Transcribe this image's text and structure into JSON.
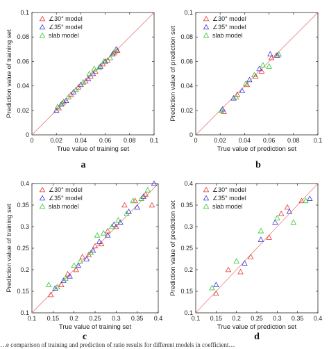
{
  "chart_data": [
    {
      "type": "scatter",
      "panel": "a",
      "xlabel": "True value of training set",
      "ylabel": "Prediction value of training set",
      "xlim": [
        0,
        0.1
      ],
      "ylim": [
        0,
        0.1
      ],
      "xticks": [
        "0",
        "0.02",
        "0.04",
        "0.06",
        "0.08",
        "0.1"
      ],
      "yticks": [
        "0",
        "0.02",
        "0.04",
        "0.06",
        "0.08",
        "0.1"
      ],
      "xtick_values": [
        0,
        0.02,
        0.04,
        0.06,
        0.08,
        0.1
      ],
      "ytick_values": [
        0,
        0.02,
        0.04,
        0.06,
        0.08,
        0.1
      ],
      "reference_line": "y = x",
      "legend_position": "top-left",
      "series": [
        {
          "name": "∠30° model",
          "color": "#e8382f",
          "points": [
            [
              0.022,
              0.022
            ],
            [
              0.026,
              0.027
            ],
            [
              0.032,
              0.033
            ],
            [
              0.038,
              0.039
            ],
            [
              0.044,
              0.044
            ],
            [
              0.048,
              0.048
            ],
            [
              0.052,
              0.052
            ],
            [
              0.058,
              0.058
            ],
            [
              0.062,
              0.061
            ],
            [
              0.067,
              0.067
            ],
            [
              0.07,
              0.069
            ]
          ]
        },
        {
          "name": "∠35° model",
          "color": "#3a3ad8",
          "points": [
            [
              0.02,
              0.02
            ],
            [
              0.024,
              0.025
            ],
            [
              0.028,
              0.028
            ],
            [
              0.034,
              0.035
            ],
            [
              0.04,
              0.041
            ],
            [
              0.046,
              0.046
            ],
            [
              0.05,
              0.05
            ],
            [
              0.056,
              0.056
            ],
            [
              0.06,
              0.06
            ],
            [
              0.066,
              0.066
            ],
            [
              0.069,
              0.07
            ]
          ]
        },
        {
          "name": "slab model",
          "color": "#2ec72e",
          "points": [
            [
              0.021,
              0.023
            ],
            [
              0.025,
              0.026
            ],
            [
              0.03,
              0.031
            ],
            [
              0.036,
              0.037
            ],
            [
              0.042,
              0.043
            ],
            [
              0.047,
              0.05
            ],
            [
              0.051,
              0.054
            ],
            [
              0.055,
              0.055
            ],
            [
              0.059,
              0.06
            ],
            [
              0.064,
              0.063
            ],
            [
              0.068,
              0.068
            ]
          ]
        }
      ]
    },
    {
      "type": "scatter",
      "panel": "b",
      "xlabel": "True value of prediction set",
      "ylabel": "Prediction value of prediction set",
      "xlim": [
        0,
        0.1
      ],
      "ylim": [
        0,
        0.1
      ],
      "xticks": [
        "0",
        "0.02",
        "0.04",
        "0.06",
        "0.08",
        "0.1"
      ],
      "yticks": [
        "0",
        "0.02",
        "0.04",
        "0.06",
        "0.08",
        "0.1"
      ],
      "xtick_values": [
        0,
        0.02,
        0.04,
        0.06,
        0.08,
        0.1
      ],
      "ytick_values": [
        0,
        0.02,
        0.04,
        0.06,
        0.08,
        0.1
      ],
      "reference_line": "y = x",
      "legend_position": "top-left",
      "series": [
        {
          "name": "∠30° model",
          "color": "#e8382f",
          "points": [
            [
              0.023,
              0.019
            ],
            [
              0.034,
              0.033
            ],
            [
              0.042,
              0.041
            ],
            [
              0.049,
              0.048
            ],
            [
              0.054,
              0.052
            ],
            [
              0.062,
              0.063
            ],
            [
              0.066,
              0.065
            ]
          ]
        },
        {
          "name": "∠35° model",
          "color": "#3a3ad8",
          "points": [
            [
              0.022,
              0.021
            ],
            [
              0.031,
              0.03
            ],
            [
              0.038,
              0.036
            ],
            [
              0.044,
              0.045
            ],
            [
              0.052,
              0.054
            ],
            [
              0.061,
              0.066
            ],
            [
              0.067,
              0.065
            ]
          ]
        },
        {
          "name": "slab model",
          "color": "#2ec72e",
          "points": [
            [
              0.021,
              0.02
            ],
            [
              0.033,
              0.031
            ],
            [
              0.041,
              0.042
            ],
            [
              0.048,
              0.049
            ],
            [
              0.055,
              0.057
            ],
            [
              0.06,
              0.056
            ],
            [
              0.068,
              0.066
            ]
          ]
        }
      ]
    },
    {
      "type": "scatter",
      "panel": "c",
      "xlabel": "True value of training set",
      "ylabel": "Prediction value of training set",
      "xlim": [
        0.1,
        0.4
      ],
      "ylim": [
        0.1,
        0.4
      ],
      "xticks": [
        "0.1",
        "0.15",
        "0.2",
        "0.25",
        "0.3",
        "0.35",
        "0.4"
      ],
      "yticks": [
        "0.1",
        "0.15",
        "0.2",
        "0.25",
        "0.3",
        "0.35",
        "0.4"
      ],
      "xtick_values": [
        0.1,
        0.15,
        0.2,
        0.25,
        0.3,
        0.35,
        0.4
      ],
      "ytick_values": [
        0.1,
        0.15,
        0.2,
        0.25,
        0.3,
        0.35,
        0.4
      ],
      "reference_line": "y = x",
      "legend_position": "top-left",
      "series": [
        {
          "name": "∠30° model",
          "color": "#e8382f",
          "points": [
            [
              0.145,
              0.142
            ],
            [
              0.17,
              0.165
            ],
            [
              0.185,
              0.19
            ],
            [
              0.205,
              0.2
            ],
            [
              0.22,
              0.23
            ],
            [
              0.235,
              0.235
            ],
            [
              0.25,
              0.255
            ],
            [
              0.265,
              0.26
            ],
            [
              0.28,
              0.29
            ],
            [
              0.3,
              0.3
            ],
            [
              0.32,
              0.35
            ],
            [
              0.345,
              0.36
            ],
            [
              0.37,
              0.375
            ],
            [
              0.385,
              0.35
            ]
          ]
        },
        {
          "name": "∠35° model",
          "color": "#3a3ad8",
          "points": [
            [
              0.155,
              0.157
            ],
            [
              0.175,
              0.175
            ],
            [
              0.19,
              0.185
            ],
            [
              0.21,
              0.21
            ],
            [
              0.23,
              0.225
            ],
            [
              0.245,
              0.245
            ],
            [
              0.26,
              0.265
            ],
            [
              0.28,
              0.28
            ],
            [
              0.295,
              0.305
            ],
            [
              0.31,
              0.31
            ],
            [
              0.33,
              0.335
            ],
            [
              0.35,
              0.345
            ],
            [
              0.365,
              0.37
            ],
            [
              0.39,
              0.4
            ]
          ]
        },
        {
          "name": "slab model",
          "color": "#2ec72e",
          "points": [
            [
              0.14,
              0.165
            ],
            [
              0.16,
              0.16
            ],
            [
              0.18,
              0.18
            ],
            [
              0.2,
              0.21
            ],
            [
              0.215,
              0.22
            ],
            [
              0.24,
              0.24
            ],
            [
              0.255,
              0.28
            ],
            [
              0.27,
              0.285
            ],
            [
              0.29,
              0.3
            ],
            [
              0.305,
              0.315
            ],
            [
              0.325,
              0.33
            ],
            [
              0.34,
              0.36
            ],
            [
              0.36,
              0.365
            ],
            [
              0.375,
              0.385
            ]
          ]
        }
      ]
    },
    {
      "type": "scatter",
      "panel": "d",
      "xlabel": "True value of prediction set",
      "ylabel": "Prediction value of prediction set",
      "xlim": [
        0.1,
        0.4
      ],
      "ylim": [
        0.1,
        0.4
      ],
      "xticks": [
        "0.1",
        "0.15",
        "0.2",
        "0.25",
        "0.3",
        "0.35",
        "0.4"
      ],
      "yticks": [
        "0.1",
        "0.15",
        "0.2",
        "0.25",
        "0.3",
        "0.35",
        "0.4"
      ],
      "xtick_values": [
        0.1,
        0.15,
        0.2,
        0.25,
        0.3,
        0.35,
        0.4
      ],
      "ytick_values": [
        0.1,
        0.15,
        0.2,
        0.25,
        0.3,
        0.35,
        0.4
      ],
      "reference_line": "y = x",
      "legend_position": "top-left",
      "series": [
        {
          "name": "∠30° model",
          "color": "#e8382f",
          "points": [
            [
              0.15,
              0.145
            ],
            [
              0.18,
              0.2
            ],
            [
              0.21,
              0.195
            ],
            [
              0.235,
              0.23
            ],
            [
              0.28,
              0.275
            ],
            [
              0.31,
              0.33
            ],
            [
              0.325,
              0.345
            ],
            [
              0.36,
              0.36
            ]
          ]
        },
        {
          "name": "∠35° model",
          "color": "#3a3ad8",
          "points": [
            [
              0.15,
              0.165
            ],
            [
              0.22,
              0.215
            ],
            [
              0.26,
              0.27
            ],
            [
              0.295,
              0.31
            ],
            [
              0.33,
              0.335
            ],
            [
              0.38,
              0.365
            ]
          ]
        },
        {
          "name": "slab model",
          "color": "#2ec72e",
          "points": [
            [
              0.14,
              0.158
            ],
            [
              0.2,
              0.22
            ],
            [
              0.26,
              0.29
            ],
            [
              0.3,
              0.32
            ],
            [
              0.34,
              0.31
            ],
            [
              0.37,
              0.36
            ]
          ]
        }
      ]
    }
  ],
  "caption": "…e comparison of training and prediction of ratio results for different models in coefficient…"
}
